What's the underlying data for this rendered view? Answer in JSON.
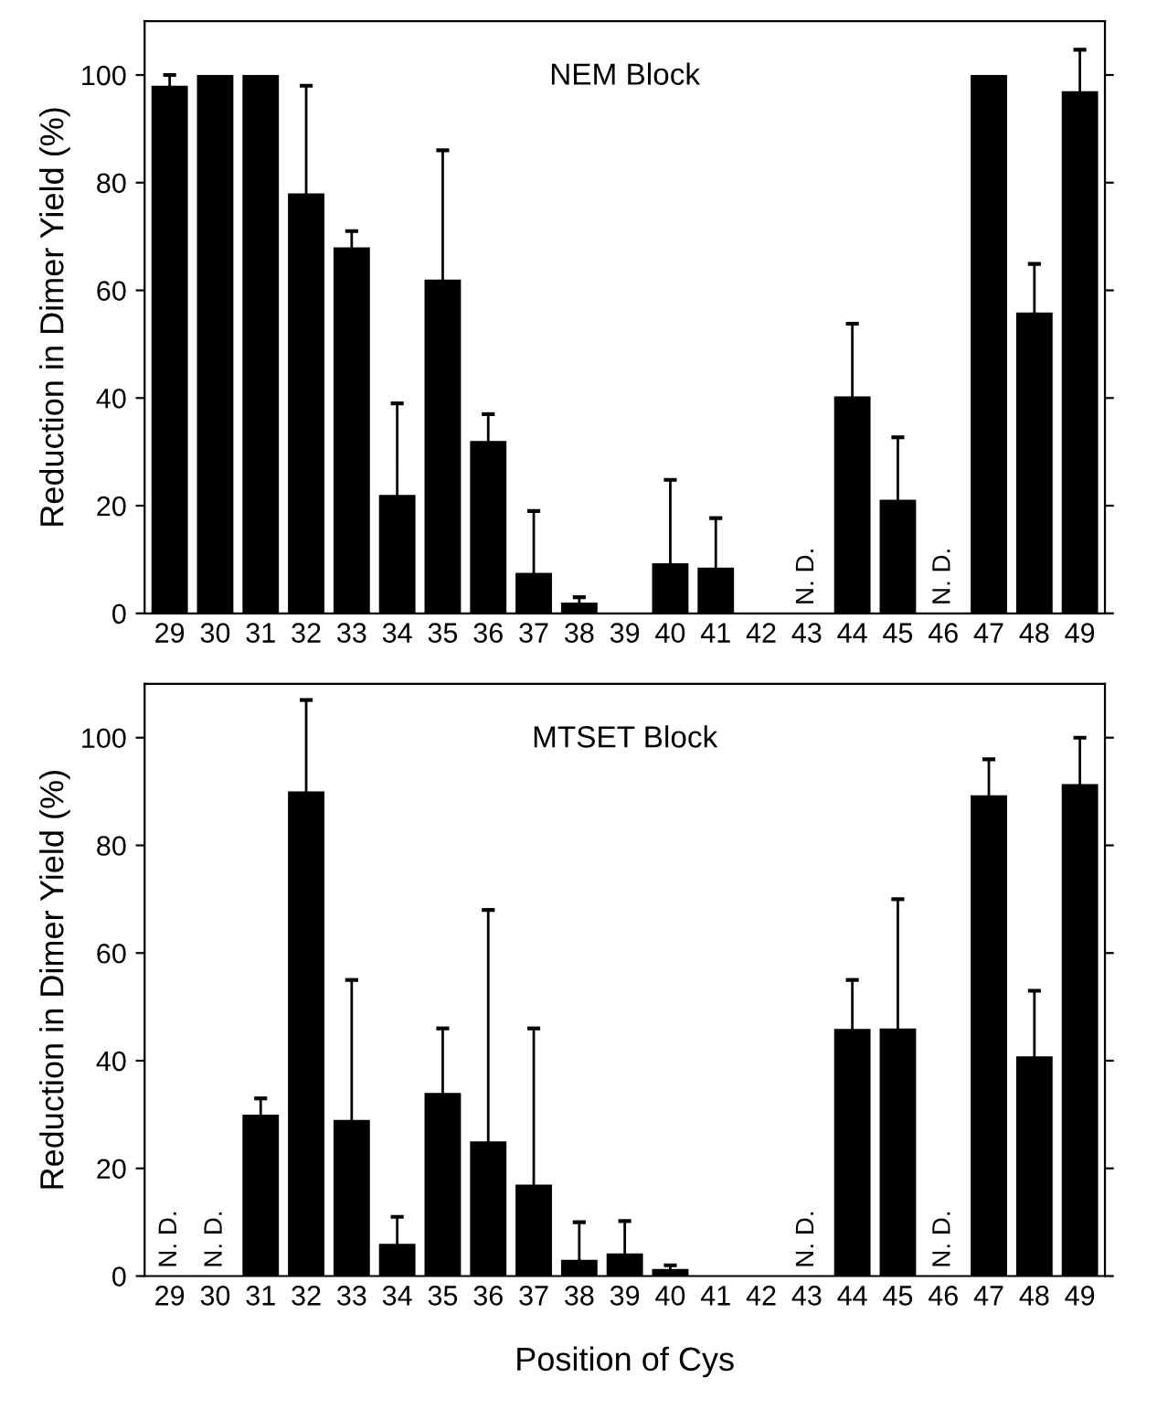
{
  "chart_data": [
    {
      "type": "bar",
      "title": "NEM Block",
      "ylabel": "Reduction in Dimer Yield (%)",
      "categories": [
        "29",
        "30",
        "31",
        "32",
        "33",
        "34",
        "35",
        "36",
        "37",
        "38",
        "39",
        "40",
        "41",
        "42",
        "43",
        "44",
        "45",
        "46",
        "47",
        "48",
        "49"
      ],
      "series": [
        {
          "color": "#000000",
          "values": [
            98,
            100,
            100,
            78,
            68,
            22,
            62,
            32,
            7.5,
            2,
            0,
            9.3,
            8.5,
            0,
            null,
            40.3,
            21.1,
            null,
            100,
            55.9,
            97
          ],
          "errors": [
            [
              98,
              100
            ],
            null,
            null,
            [
              78,
              98
            ],
            [
              68,
              71
            ],
            [
              22,
              39
            ],
            [
              62,
              86
            ],
            [
              32,
              37
            ],
            [
              7.5,
              19
            ],
            [
              2,
              3
            ],
            null,
            [
              9.3,
              24.8
            ],
            [
              8.5,
              17.7
            ],
            null,
            null,
            [
              40.3,
              53.8
            ],
            [
              21.1,
              32.7
            ],
            null,
            null,
            [
              55.9,
              64.9
            ],
            [
              97,
              104.7
            ]
          ]
        }
      ],
      "annotations": [
        "N. D.",
        "N. D."
      ],
      "ylim": [
        0,
        110
      ],
      "yticks": [
        0,
        20,
        40,
        60,
        80,
        100
      ],
      "grid": false,
      "legend": false
    },
    {
      "type": "bar",
      "title": "MTSET Block",
      "ylabel": "Reduction in Dimer Yield (%)",
      "xlabel": "Position of Cys",
      "categories": [
        "29",
        "30",
        "31",
        "32",
        "33",
        "34",
        "35",
        "36",
        "37",
        "38",
        "39",
        "40",
        "41",
        "42",
        "43",
        "44",
        "45",
        "46",
        "47",
        "48",
        "49"
      ],
      "series": [
        {
          "color": "#000000",
          "values": [
            null,
            null,
            30,
            90,
            29,
            6,
            34,
            25,
            17,
            3,
            4.2,
            1.3,
            0,
            0,
            null,
            45.9,
            46,
            null,
            89.3,
            40.8,
            91.4
          ],
          "errors": [
            null,
            null,
            [
              30,
              33
            ],
            [
              90,
              107
            ],
            [
              29,
              55
            ],
            [
              6,
              11
            ],
            [
              34,
              46
            ],
            [
              25,
              68
            ],
            [
              17,
              46
            ],
            [
              3,
              10
            ],
            [
              4.2,
              10.2
            ],
            [
              1.3,
              2
            ],
            null,
            null,
            null,
            [
              45.9,
              55
            ],
            [
              46,
              70
            ],
            null,
            [
              89.3,
              96
            ],
            [
              40.8,
              53
            ],
            [
              91.4,
              100
            ]
          ]
        }
      ],
      "annotations": [
        "N. D.",
        "N. D.",
        "N. D.",
        "N. D."
      ],
      "ylim": [
        0,
        110
      ],
      "yticks": [
        0,
        20,
        40,
        60,
        80,
        100
      ],
      "grid": false,
      "legend": false
    }
  ]
}
